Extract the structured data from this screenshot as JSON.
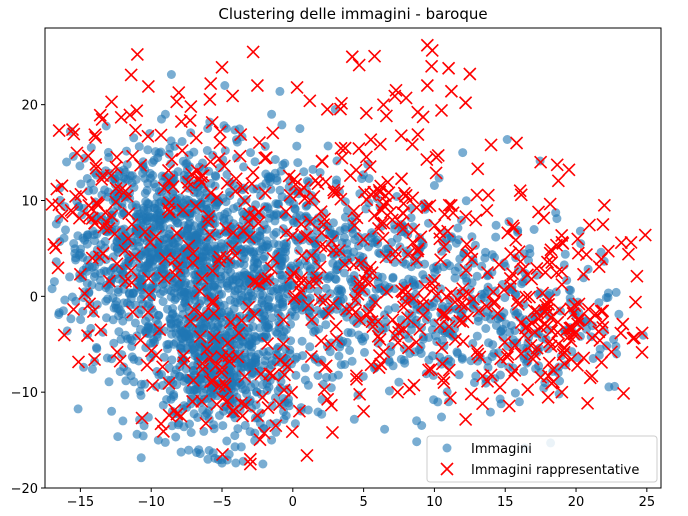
{
  "chart_data": {
    "type": "scatter",
    "title": "Clustering delle immagini - baroque",
    "xlabel": "",
    "ylabel": "",
    "xlim": [
      -17.5,
      26.0
    ],
    "ylim": [
      -20.0,
      28.0
    ],
    "x_ticks": [
      -15,
      -10,
      -5,
      0,
      5,
      10,
      15,
      20,
      25
    ],
    "y_ticks": [
      -20,
      -10,
      0,
      10,
      20
    ],
    "x_tick_labels": [
      "−15",
      "−10",
      "−5",
      "0",
      "5",
      "10",
      "15",
      "20",
      "25"
    ],
    "y_tick_labels": [
      "−20",
      "−10",
      "0",
      "10",
      "20"
    ],
    "grid": false,
    "legend_position": "lower-right",
    "series": [
      {
        "name": "Immagini",
        "marker": "circle",
        "color": "#1f77b4",
        "alpha": 0.6,
        "clusters": [
          {
            "cx": -7.0,
            "cy": 3.5,
            "sx": 3.6,
            "sy": 6.0,
            "n": 900
          },
          {
            "cx": -5.0,
            "cy": -8.0,
            "sx": 2.6,
            "sy": 3.8,
            "n": 450
          },
          {
            "cx": -12.0,
            "cy": 6.0,
            "sx": 2.5,
            "sy": 4.5,
            "n": 300
          },
          {
            "cx": 1.0,
            "cy": 3.0,
            "sx": 3.5,
            "sy": 6.0,
            "n": 350
          },
          {
            "cx": 8.0,
            "cy": 0.0,
            "sx": 4.5,
            "sy": 6.0,
            "n": 280
          },
          {
            "cx": 16.0,
            "cy": -2.0,
            "sx": 4.0,
            "sy": 4.5,
            "n": 200
          }
        ],
        "points": [
          [
            -17.0,
            0.8
          ],
          [
            -16.5,
            -1.7
          ],
          [
            -16.2,
            -1.5
          ],
          [
            -15.5,
            14.6
          ],
          [
            -12.0,
            1.5
          ],
          [
            -9.5,
            -15.0
          ],
          [
            -6.8,
            -16.3
          ],
          [
            -6.0,
            -17.0
          ],
          [
            -5.5,
            -16.9
          ],
          [
            -5.0,
            -17.4
          ],
          [
            -3.5,
            -17.2
          ],
          [
            -11.0,
            -14.4
          ],
          [
            -12.8,
            -12.0
          ],
          [
            -1.5,
            -15.0
          ],
          [
            -10.5,
            -13.5
          ],
          [
            -14.5,
            -4.0
          ],
          [
            -15.0,
            4.5
          ],
          [
            -13.9,
            8.4
          ],
          [
            -13.0,
            14.5
          ],
          [
            -9.0,
            19.0
          ],
          [
            -1.5,
            19.0
          ],
          [
            0.5,
            17.5
          ],
          [
            3.0,
            19.5
          ],
          [
            11.0,
            -11.0
          ],
          [
            16.0,
            -11.0
          ],
          [
            -4.8,
            22.0
          ],
          [
            12.0,
            15.0
          ],
          [
            17.8,
            -9.0
          ],
          [
            -14.9,
            8.5
          ],
          [
            -14.0,
            -6.8
          ],
          [
            -12.0,
            -13.0
          ],
          [
            -8.5,
            -12.0
          ]
        ]
      },
      {
        "name": "Immagini rappresentative",
        "marker": "x",
        "color": "#ff0000",
        "clusters": [
          {
            "cx": -9.0,
            "cy": 8.0,
            "sx": 4.5,
            "sy": 7.0,
            "n": 120
          },
          {
            "cx": -5.0,
            "cy": -9.0,
            "sx": 3.0,
            "sy": 4.0,
            "n": 70
          },
          {
            "cx": 0.0,
            "cy": 8.0,
            "sx": 4.0,
            "sy": 6.0,
            "n": 80
          },
          {
            "cx": 7.0,
            "cy": 8.0,
            "sx": 3.5,
            "sy": 6.5,
            "n": 90
          },
          {
            "cx": 8.0,
            "cy": -4.0,
            "sx": 4.5,
            "sy": 4.5,
            "n": 90
          },
          {
            "cx": 14.0,
            "cy": 4.0,
            "sx": 3.5,
            "sy": 5.0,
            "n": 60
          },
          {
            "cx": 19.0,
            "cy": -2.0,
            "sx": 2.5,
            "sy": 4.0,
            "n": 110
          },
          {
            "cx": -14.0,
            "cy": 10.0,
            "sx": 2.0,
            "sy": 5.0,
            "n": 40
          }
        ],
        "points": [
          [
            -16.5,
            17.3
          ],
          [
            -17.0,
            9.6
          ],
          [
            -13.6,
            18.9
          ],
          [
            -12.8,
            20.3
          ],
          [
            -10.2,
            21.9
          ],
          [
            -8.2,
            20.3
          ],
          [
            -7.2,
            19.8
          ],
          [
            -5.0,
            23.9
          ],
          [
            -5.8,
            22.2
          ],
          [
            -2.8,
            25.5
          ],
          [
            -2.5,
            22.0
          ],
          [
            0.3,
            21.8
          ],
          [
            1.2,
            20.4
          ],
          [
            4.2,
            25.0
          ],
          [
            9.5,
            26.2
          ],
          [
            9.8,
            24.0
          ],
          [
            11.0,
            23.8
          ],
          [
            12.5,
            23.2
          ],
          [
            9.5,
            22.0
          ],
          [
            11.2,
            21.4
          ],
          [
            12.2,
            20.2
          ],
          [
            10.5,
            19.4
          ],
          [
            7.2,
            20.9
          ],
          [
            8.0,
            20.7
          ],
          [
            6.4,
            20.0
          ],
          [
            23.2,
            5.6
          ],
          [
            23.7,
            4.4
          ],
          [
            24.3,
            2.1
          ],
          [
            24.2,
            -0.6
          ],
          [
            23.3,
            -2.9
          ],
          [
            22.0,
            9.5
          ],
          [
            21.9,
            7.5
          ],
          [
            19.5,
            13.2
          ],
          [
            17.5,
            14.0
          ],
          [
            15.8,
            16.0
          ],
          [
            14.0,
            15.8
          ],
          [
            -16.3,
            8.4
          ],
          [
            -15.0,
            2.3
          ],
          [
            -14.0,
            -6.6
          ],
          [
            -14.5,
            -4.1
          ],
          [
            -3.0,
            -17.0
          ],
          [
            -3.0,
            -17.5
          ],
          [
            1.0,
            -16.6
          ],
          [
            -1.2,
            -13.5
          ],
          [
            2.8,
            -14.2
          ],
          [
            5.0,
            -12.0
          ],
          [
            7.4,
            -10.0
          ],
          [
            12.6,
            -10.2
          ],
          [
            13.4,
            -11.2
          ],
          [
            14.0,
            -8.2
          ],
          [
            19.0,
            -10.0
          ],
          [
            21.0,
            -8.5
          ],
          [
            22.5,
            -5.8
          ],
          [
            21.8,
            -6.9
          ]
        ]
      }
    ]
  }
}
